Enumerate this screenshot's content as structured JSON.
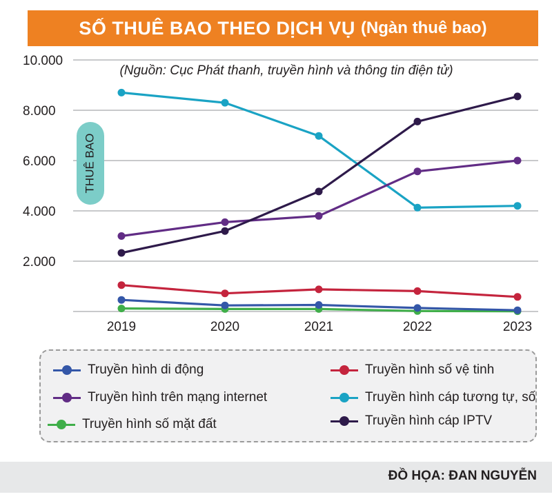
{
  "header": {
    "title": "SỐ THUÊ BAO THEO DỊCH VỤ",
    "unit": "(Ngàn thuê bao)"
  },
  "source": "(Nguồn: Cục Phát thanh, truyền hình và thông tin điện tử)",
  "credit": "ĐỒ HỌA: ĐAN NGUYỄN",
  "chart_data": {
    "type": "line",
    "title": "SỐ THUÊ BAO THEO DỊCH VỤ",
    "subtitle": "(Ngàn thuê bao)",
    "ylabel": "THUÊ BAO",
    "xlabel": "",
    "x": [
      "2019",
      "2020",
      "2021",
      "2022",
      "2023"
    ],
    "ylim": [
      0,
      10000
    ],
    "yticks": [
      {
        "value": 2000,
        "label": "2.000"
      },
      {
        "value": 4000,
        "label": "4.000"
      },
      {
        "value": 6000,
        "label": "6.000"
      },
      {
        "value": 8000,
        "label": "8.000"
      },
      {
        "value": 10000,
        "label": "10.000"
      }
    ],
    "grid": true,
    "legend_position": "bottom",
    "series": [
      {
        "name": "Truyền hình cáp tương tự, số",
        "color": "#1aa3c4",
        "values": [
          8700,
          8300,
          6980,
          4130,
          4200
        ]
      },
      {
        "name": "Truyền hình trên mạng internet",
        "color": "#612c85",
        "values": [
          3000,
          3550,
          3800,
          5570,
          6000
        ]
      },
      {
        "name": "Truyền hình cáp IPTV",
        "color": "#2e1a4a",
        "values": [
          2330,
          3200,
          4770,
          7550,
          8550
        ]
      },
      {
        "name": "Truyền hình số vệ tinh",
        "color": "#c4243d",
        "values": [
          1050,
          720,
          880,
          810,
          580
        ]
      },
      {
        "name": "Truyền hình di động",
        "color": "#3457a8",
        "values": [
          460,
          240,
          260,
          140,
          50
        ]
      },
      {
        "name": "Truyền hình số mặt đất",
        "color": "#3fae49",
        "values": [
          120,
          100,
          100,
          20,
          10
        ]
      }
    ]
  },
  "legend": {
    "items": [
      {
        "label": "Truyền hình di động",
        "color": "#3457a8"
      },
      {
        "label": "Truyền hình số vệ tinh",
        "color": "#c4243d"
      },
      {
        "label": "Truyền hình trên mạng internet",
        "color": "#612c85"
      },
      {
        "label": "Truyền hình cáp tương tự, số",
        "color": "#1aa3c4"
      },
      {
        "label": "Truyền hình số mặt đất",
        "color": "#3fae49"
      },
      {
        "label": "Truyền hình cáp IPTV",
        "color": "#2e1a4a"
      }
    ]
  }
}
